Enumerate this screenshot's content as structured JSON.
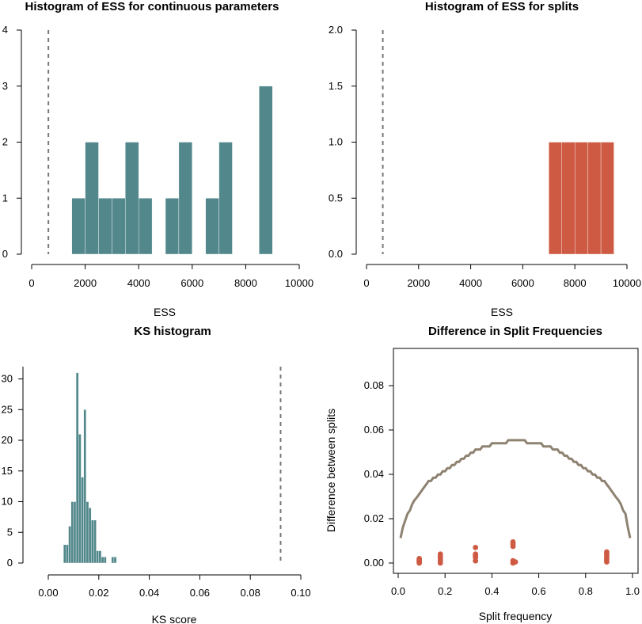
{
  "colors": {
    "teal": "#52888b",
    "orange": "#ce5a43",
    "curve": "#8e8271",
    "dashed": "#777777",
    "bar_edge": "#ffffff"
  },
  "chart_data": [
    {
      "type": "bar",
      "title": "Histogram of ESS for continuous parameters",
      "xlabel": "ESS",
      "ylabel": "",
      "bin_width": 500,
      "bins_start": [
        1500,
        2000,
        2500,
        3000,
        3500,
        4000,
        5000,
        5500,
        6500,
        7000,
        8500
      ],
      "values": [
        1,
        2,
        1,
        1,
        2,
        1,
        1,
        2,
        1,
        2,
        3
      ],
      "threshold_line": 625,
      "xlim": [
        0,
        10000
      ],
      "ylim": [
        0,
        4
      ],
      "xticks": [
        "0",
        "2000",
        "4000",
        "6000",
        "8000",
        "10000"
      ],
      "yticks": [
        "0",
        "1",
        "2",
        "3",
        "4"
      ],
      "color": "teal"
    },
    {
      "type": "bar",
      "title": "Histogram of ESS for splits",
      "xlabel": "ESS",
      "ylabel": "",
      "bin_width": 500,
      "bins_start": [
        7000,
        7500,
        8000,
        8500,
        9000
      ],
      "values": [
        1,
        1,
        1,
        1,
        1
      ],
      "threshold_line": 625,
      "xlim": [
        0,
        10000
      ],
      "ylim": [
        0,
        2
      ],
      "xticks": [
        "0",
        "2000",
        "4000",
        "6000",
        "8000",
        "10000"
      ],
      "yticks": [
        "0.0",
        "0.5",
        "1.0",
        "1.5",
        "2.0"
      ],
      "color": "orange"
    },
    {
      "type": "bar",
      "title": "KS histogram",
      "xlabel": "KS score",
      "ylabel": "",
      "bin_width": 0.001,
      "bins_start": [
        0.006,
        0.007,
        0.008,
        0.009,
        0.01,
        0.011,
        0.012,
        0.013,
        0.014,
        0.015,
        0.016,
        0.017,
        0.018,
        0.019,
        0.02,
        0.021,
        0.022,
        0.023,
        0.024,
        0.025,
        0.026
      ],
      "values": [
        3,
        3,
        6,
        10,
        10,
        31,
        21,
        14,
        25,
        10,
        9,
        7,
        7,
        2,
        2,
        1,
        1,
        0,
        0,
        1,
        1
      ],
      "threshold_line": 0.092,
      "xlim": [
        0,
        0.1
      ],
      "ylim": [
        0,
        32
      ],
      "xticks": [
        "0.00",
        "0.02",
        "0.04",
        "0.06",
        "0.08",
        "0.10"
      ],
      "yticks": [
        "0",
        "5",
        "10",
        "15",
        "20",
        "25",
        "30"
      ],
      "color": "teal"
    },
    {
      "type": "scatter",
      "title": "Difference in Split Frequencies",
      "xlabel": "Split frequency",
      "ylabel": "Difference between splits",
      "xlim": [
        0,
        1
      ],
      "ylim": [
        0,
        0.09
      ],
      "xticks": [
        "0.0",
        "0.2",
        "0.4",
        "0.6",
        "0.8",
        "1.0"
      ],
      "yticks": [
        "0.00",
        "0.02",
        "0.04",
        "0.06",
        "0.08"
      ],
      "curve_color": "curve",
      "point_color": "orange",
      "curve": {
        "x": [
          0.01,
          0.02,
          0.03,
          0.04,
          0.05,
          0.06,
          0.07,
          0.08,
          0.09,
          0.1,
          0.11,
          0.12,
          0.13,
          0.14,
          0.15,
          0.16,
          0.17,
          0.18,
          0.19,
          0.2,
          0.21,
          0.22,
          0.23,
          0.24,
          0.25,
          0.26,
          0.27,
          0.28,
          0.29,
          0.3,
          0.31,
          0.32,
          0.33,
          0.34,
          0.35,
          0.36,
          0.37,
          0.38,
          0.39,
          0.4,
          0.41,
          0.42,
          0.43,
          0.44,
          0.45,
          0.46,
          0.47,
          0.48,
          0.49,
          0.5,
          0.51,
          0.52,
          0.53,
          0.54,
          0.55,
          0.56,
          0.57,
          0.58,
          0.59,
          0.6,
          0.61,
          0.62,
          0.63,
          0.64,
          0.65,
          0.66,
          0.67,
          0.68,
          0.69,
          0.7,
          0.71,
          0.72,
          0.73,
          0.74,
          0.75,
          0.76,
          0.77,
          0.78,
          0.79,
          0.8,
          0.81,
          0.82,
          0.83,
          0.84,
          0.85,
          0.86,
          0.87,
          0.88,
          0.89,
          0.9,
          0.91,
          0.92,
          0.93,
          0.94,
          0.95,
          0.96,
          0.97,
          0.98,
          0.99
        ],
        "y": [
          0.0113,
          0.0161,
          0.0192,
          0.0222,
          0.0237,
          0.0266,
          0.0284,
          0.0296,
          0.0311,
          0.0326,
          0.0341,
          0.0355,
          0.037,
          0.037,
          0.0385,
          0.0385,
          0.0399,
          0.0399,
          0.0414,
          0.0414,
          0.0428,
          0.0428,
          0.0442,
          0.0442,
          0.0456,
          0.0456,
          0.047,
          0.047,
          0.0484,
          0.0484,
          0.0498,
          0.0498,
          0.0512,
          0.0512,
          0.0512,
          0.0526,
          0.0526,
          0.0526,
          0.0526,
          0.054,
          0.054,
          0.054,
          0.054,
          0.054,
          0.054,
          0.054,
          0.0554,
          0.0554,
          0.0554,
          0.0554,
          0.0554,
          0.0554,
          0.0554,
          0.0554,
          0.054,
          0.054,
          0.054,
          0.054,
          0.054,
          0.054,
          0.054,
          0.0526,
          0.0526,
          0.0526,
          0.0526,
          0.0512,
          0.0512,
          0.0512,
          0.0498,
          0.0498,
          0.0484,
          0.0484,
          0.047,
          0.047,
          0.0456,
          0.0456,
          0.0442,
          0.0442,
          0.0428,
          0.0428,
          0.0414,
          0.0414,
          0.0399,
          0.0399,
          0.0385,
          0.0385,
          0.037,
          0.037,
          0.0355,
          0.0341,
          0.0326,
          0.0311,
          0.0296,
          0.0284,
          0.0266,
          0.0237,
          0.0222,
          0.0161,
          0.0113
        ]
      },
      "points": [
        {
          "x": 0.09,
          "y": 0.0
        },
        {
          "x": 0.09,
          "y": 0.0005
        },
        {
          "x": 0.09,
          "y": 0.001
        },
        {
          "x": 0.09,
          "y": 0.0015
        },
        {
          "x": 0.09,
          "y": 0.002
        },
        {
          "x": 0.18,
          "y": 0.0
        },
        {
          "x": 0.18,
          "y": 0.001
        },
        {
          "x": 0.18,
          "y": 0.002
        },
        {
          "x": 0.18,
          "y": 0.003
        },
        {
          "x": 0.18,
          "y": 0.004
        },
        {
          "x": 0.33,
          "y": 0.001
        },
        {
          "x": 0.33,
          "y": 0.0025
        },
        {
          "x": 0.33,
          "y": 0.003
        },
        {
          "x": 0.33,
          "y": 0.0035
        },
        {
          "x": 0.33,
          "y": 0.004
        },
        {
          "x": 0.33,
          "y": 0.007
        },
        {
          "x": 0.49,
          "y": 0.0
        },
        {
          "x": 0.49,
          "y": 0.001
        },
        {
          "x": 0.49,
          "y": 0.0075
        },
        {
          "x": 0.49,
          "y": 0.0085
        },
        {
          "x": 0.49,
          "y": 0.0095
        },
        {
          "x": 0.5,
          "y": 0.0005
        },
        {
          "x": 0.89,
          "y": 0.0005
        },
        {
          "x": 0.89,
          "y": 0.0015
        },
        {
          "x": 0.89,
          "y": 0.0025
        },
        {
          "x": 0.89,
          "y": 0.0035
        },
        {
          "x": 0.89,
          "y": 0.0045
        },
        {
          "x": 0.89,
          "y": 0.005
        }
      ]
    }
  ]
}
